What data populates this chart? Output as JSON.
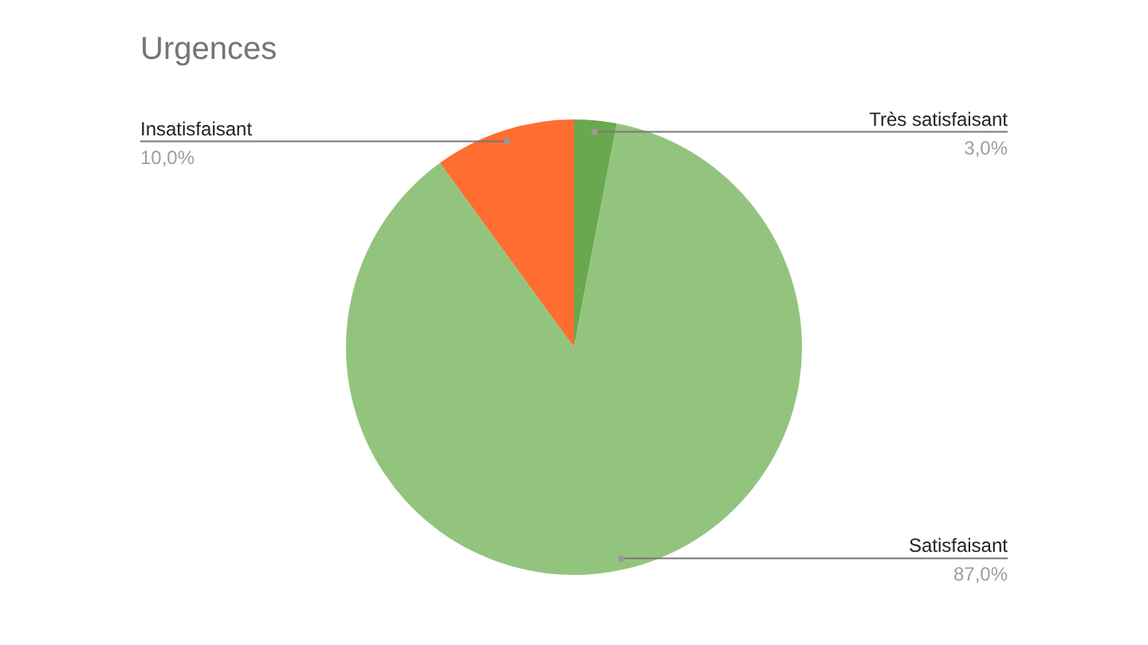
{
  "chart_data": {
    "type": "pie",
    "title": "Urgences",
    "categories": [
      "Très satisfaisant",
      "Satisfaisant",
      "Insatisfaisant"
    ],
    "values": [
      3,
      87,
      10
    ],
    "value_labels": [
      "3,0%",
      "87,0%",
      "10,0%"
    ],
    "colors": [
      "#6aa84f",
      "#93c47d",
      "#ff6d31"
    ],
    "legend": false
  }
}
